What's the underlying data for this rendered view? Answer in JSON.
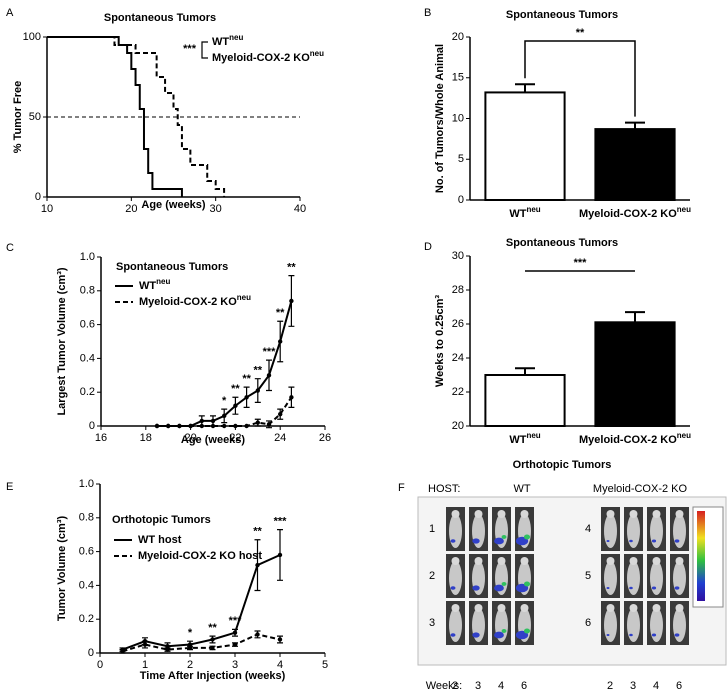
{
  "chart_data": [
    {
      "type": "step",
      "label": "A",
      "title": "Spontaneous Tumors",
      "xlabel": "Age  (weeks)",
      "ylabel": "% Tumor Free",
      "xlim": [
        10,
        40
      ],
      "xticks": [
        10,
        20,
        30,
        40
      ],
      "ylim": [
        0,
        100
      ],
      "yticks": [
        0,
        50,
        100
      ],
      "hline": 50,
      "significance": "***",
      "legend": "upper right",
      "series": [
        {
          "name": "WT",
          "superscript": "neu",
          "color": "#000000",
          "dash": false,
          "x": [
            10,
            18.5,
            19.5,
            20,
            20.5,
            21,
            21.5,
            22,
            22.5,
            23.5,
            26
          ],
          "values": [
            100,
            95,
            90,
            80,
            70,
            55,
            30,
            15,
            5,
            5,
            0
          ]
        },
        {
          "name": "Myeloid-COX-2 KO",
          "superscript": "neu",
          "color": "#000000",
          "dash": true,
          "x": [
            10,
            18,
            20.5,
            23,
            24,
            25,
            25.5,
            26,
            27,
            29,
            30,
            31
          ],
          "values": [
            100,
            95,
            90,
            75,
            65,
            55,
            45,
            30,
            20,
            10,
            5,
            0
          ]
        }
      ]
    },
    {
      "type": "bar",
      "label": "B",
      "title": "Spontaneous Tumors",
      "ylabel": "No. of Tumors/Whole Animal",
      "categories": [
        "WT",
        "Myeloid-COX-2 KO"
      ],
      "category_superscripts": [
        "neu",
        "neu"
      ],
      "values": [
        13.2,
        8.7
      ],
      "errors": [
        1.0,
        0.8
      ],
      "colors": [
        "#ffffff",
        "#000000"
      ],
      "ylim": [
        0,
        20
      ],
      "yticks": [
        0,
        5,
        10,
        15,
        20
      ],
      "significance": "**",
      "significance_style": "bracket"
    },
    {
      "type": "line",
      "label": "C",
      "title": "Spontaneous Tumors",
      "xlabel": "Age (weeks)",
      "ylabel": "Largest Tumor Volume (cm³)",
      "xlim": [
        16,
        26
      ],
      "xticks": [
        16,
        18,
        20,
        22,
        24,
        26
      ],
      "ylim": [
        0,
        1
      ],
      "yticks": [
        0,
        0.2,
        0.4,
        0.6,
        0.8,
        {
          "value": 1,
          "label": "1.0"
        }
      ],
      "legend": "upper left",
      "x": [
        18.5,
        19,
        19.5,
        20,
        20.5,
        21,
        21.5,
        22,
        22.5,
        23,
        23.5,
        24,
        24.5
      ],
      "series": [
        {
          "name": "WT",
          "superscript": "neu",
          "color": "#000000",
          "dash": false,
          "values": [
            0,
            0,
            0,
            0,
            0.03,
            0.03,
            0.06,
            0.12,
            0.17,
            0.21,
            0.3,
            0.5,
            0.74
          ],
          "errors": [
            0,
            0,
            0,
            0,
            0.03,
            0.03,
            0.04,
            0.05,
            0.06,
            0.07,
            0.09,
            0.12,
            0.15
          ]
        },
        {
          "name": "Myeloid-COX-2 KO",
          "superscript": "neu",
          "color": "#000000",
          "dash": true,
          "values": [
            0,
            0,
            0,
            0,
            0,
            0,
            0,
            0,
            0,
            0.02,
            0.01,
            0.07,
            0.17
          ],
          "errors": [
            0,
            0,
            0,
            0,
            0,
            0,
            0,
            0,
            0,
            0.02,
            0.02,
            0.03,
            0.06
          ]
        }
      ],
      "annotations": [
        {
          "x": 21.5,
          "text": "*"
        },
        {
          "x": 22,
          "text": "**"
        },
        {
          "x": 22.5,
          "text": "**"
        },
        {
          "x": 23,
          "text": "**"
        },
        {
          "x": 23.5,
          "text": "***"
        },
        {
          "x": 24,
          "text": "**"
        },
        {
          "x": 24.5,
          "text": "**"
        }
      ]
    },
    {
      "type": "bar",
      "label": "D",
      "title": "Spontaneous Tumors",
      "ylabel": "Weeks to 0.25cm³",
      "categories": [
        "WT",
        "Myeloid-COX-2 KO"
      ],
      "category_superscripts": [
        "neu",
        "neu"
      ],
      "values": [
        23.0,
        26.1
      ],
      "errors": [
        0.4,
        0.6
      ],
      "colors": [
        "#ffffff",
        "#000000"
      ],
      "ylim": [
        20,
        30
      ],
      "yticks": [
        20,
        22,
        24,
        26,
        28,
        30
      ],
      "significance": "***",
      "significance_style": "line"
    },
    {
      "type": "line",
      "label": "E",
      "title": "Orthotopic Tumors",
      "xlabel": "Time After Injection (weeks)",
      "ylabel": "Tumor Volume (cm³)",
      "xlim": [
        0,
        5
      ],
      "xticks": [
        0,
        1,
        2,
        3,
        4,
        5
      ],
      "ylim": [
        0,
        1
      ],
      "yticks": [
        0,
        0.2,
        0.4,
        0.6,
        0.8,
        {
          "value": 1,
          "label": "1.0"
        }
      ],
      "legend": "upper left",
      "x": [
        0.5,
        1,
        1.5,
        2,
        2.5,
        3,
        3.5,
        4
      ],
      "series": [
        {
          "name": "WT host",
          "color": "#000000",
          "dash": false,
          "values": [
            0.02,
            0.07,
            0.04,
            0.05,
            0.08,
            0.12,
            0.52,
            0.58
          ],
          "errors": [
            0.01,
            0.02,
            0.02,
            0.02,
            0.02,
            0.02,
            0.15,
            0.15
          ]
        },
        {
          "name": "Myeloid-COX-2 KO host",
          "color": "#000000",
          "dash": true,
          "values": [
            0.01,
            0.05,
            0.02,
            0.03,
            0.03,
            0.05,
            0.11,
            0.08
          ],
          "errors": [
            0.01,
            0.02,
            0.01,
            0.01,
            0.01,
            0.01,
            0.02,
            0.02
          ]
        }
      ],
      "annotations": [
        {
          "x": 2,
          "text": "*"
        },
        {
          "x": 2.5,
          "text": "**"
        },
        {
          "x": 3,
          "text": "***"
        },
        {
          "x": 3.5,
          "text": "**"
        },
        {
          "x": 4,
          "text": "***"
        }
      ]
    }
  ],
  "image_panel": {
    "label": "F",
    "title": "Orthotopic Tumors",
    "host_label": "HOST:",
    "groups": [
      "WT",
      "Myeloid-COX-2 KO"
    ],
    "rows": [
      "1",
      "2",
      "3",
      "4",
      "5",
      "6"
    ],
    "weeks_label": "Weeks:",
    "weeks": [
      "2",
      "3",
      "4",
      "6"
    ]
  }
}
